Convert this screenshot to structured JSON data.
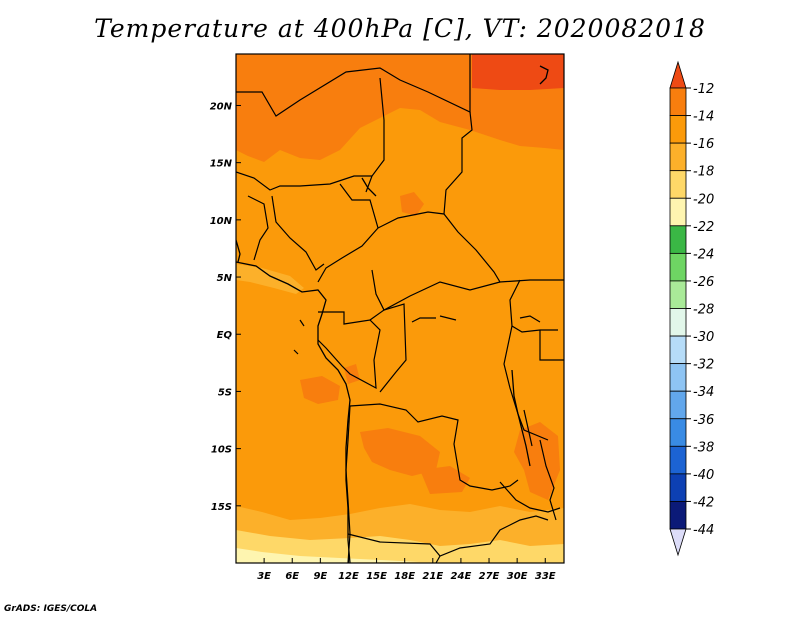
{
  "title": "Temperature at 400hPa [C], VT: 2020082018",
  "credit": "GrADS: IGES/COLA",
  "map": {
    "lon_range": [
      0,
      35
    ],
    "lat_range": [
      -20,
      24.5
    ],
    "lon_ticks": [
      {
        "value": 3,
        "label": "3E"
      },
      {
        "value": 6,
        "label": "6E"
      },
      {
        "value": 9,
        "label": "9E"
      },
      {
        "value": 12,
        "label": "12E"
      },
      {
        "value": 15,
        "label": "15E"
      },
      {
        "value": 18,
        "label": "18E"
      },
      {
        "value": 21,
        "label": "21E"
      },
      {
        "value": 24,
        "label": "24E"
      },
      {
        "value": 27,
        "label": "27E"
      },
      {
        "value": 30,
        "label": "30E"
      },
      {
        "value": 33,
        "label": "33E"
      }
    ],
    "lat_ticks": [
      {
        "value": 20,
        "label": "20N"
      },
      {
        "value": 15,
        "label": "15N"
      },
      {
        "value": 10,
        "label": "10N"
      },
      {
        "value": 5,
        "label": "5N"
      },
      {
        "value": 0,
        "label": "EQ"
      },
      {
        "value": -5,
        "label": "5S"
      },
      {
        "value": -10,
        "label": "10S"
      },
      {
        "value": -15,
        "label": "15S"
      }
    ]
  },
  "colorbar": {
    "labels": [
      "-12",
      "-14",
      "-16",
      "-18",
      "-20",
      "-22",
      "-24",
      "-26",
      "-28",
      "-30",
      "-32",
      "-34",
      "-36",
      "-38",
      "-40",
      "-42",
      "-44"
    ],
    "colors": [
      "#ee4a14",
      "#f87e0e",
      "#fb9a0a",
      "#fcb02a",
      "#fed868",
      "#fef5b0",
      "#3ab745",
      "#6ed563",
      "#a9ea98",
      "#e2f7ea",
      "#b6dcf8",
      "#8ec4f3",
      "#62a7ec",
      "#398be4",
      "#1c63d3",
      "#0d40b3",
      "#0b1a78",
      "#dcdcf8"
    ]
  }
}
